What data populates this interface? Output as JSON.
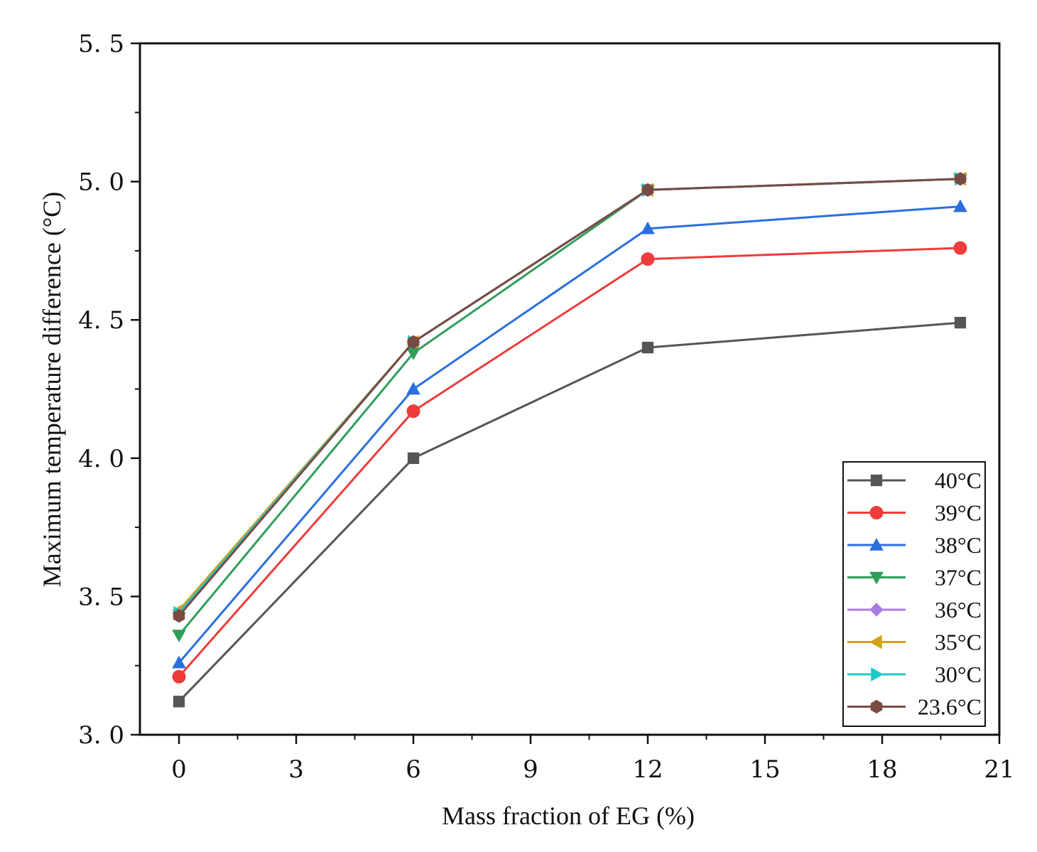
{
  "chart_data": {
    "type": "line",
    "title": "",
    "xlabel": "Mass fraction of EG (%)",
    "ylabel": "Maximum temperature difference (°C)",
    "xlim": [
      -1,
      21
    ],
    "ylim": [
      3.0,
      5.5
    ],
    "x_ticks": [
      0,
      3,
      6,
      9,
      12,
      15,
      18,
      21
    ],
    "y_ticks": [
      3.0,
      3.5,
      4.0,
      4.5,
      5.0,
      5.5
    ],
    "x_tick_labels": [
      "0",
      "3",
      "6",
      "9",
      "12",
      "15",
      "18",
      "21"
    ],
    "y_tick_labels": [
      "3. 0",
      "3. 5",
      "4. 0",
      "4. 5",
      "5. 0",
      "5. 5"
    ],
    "grid": false,
    "legend_position": "bottom-right",
    "x": [
      0,
      6,
      12,
      20
    ],
    "series": [
      {
        "name": "40°C",
        "color": "#555555",
        "marker": "square",
        "values": [
          3.12,
          4.0,
          4.4,
          4.49
        ]
      },
      {
        "name": "39°C",
        "color": "#ee3b3b",
        "marker": "circle",
        "values": [
          3.21,
          4.17,
          4.72,
          4.76
        ]
      },
      {
        "name": "38°C",
        "color": "#2b6fde",
        "marker": "triangle-up",
        "values": [
          3.26,
          4.25,
          4.83,
          4.91
        ]
      },
      {
        "name": "37°C",
        "color": "#2f9e5a",
        "marker": "triangle-down",
        "values": [
          3.36,
          4.38,
          4.97,
          5.01
        ]
      },
      {
        "name": "36°C",
        "color": "#a97be0",
        "marker": "diamond",
        "values": [
          3.44,
          4.42,
          4.97,
          5.01
        ]
      },
      {
        "name": "35°C",
        "color": "#d4a017",
        "marker": "triangle-left",
        "values": [
          3.45,
          4.42,
          4.97,
          5.01
        ]
      },
      {
        "name": "30°C",
        "color": "#1cc9c9",
        "marker": "triangle-right",
        "values": [
          3.44,
          4.42,
          4.97,
          5.01
        ]
      },
      {
        "name": "23.6°C",
        "color": "#7a4a45",
        "marker": "hexagon",
        "values": [
          3.43,
          4.42,
          4.97,
          5.01
        ]
      }
    ]
  }
}
